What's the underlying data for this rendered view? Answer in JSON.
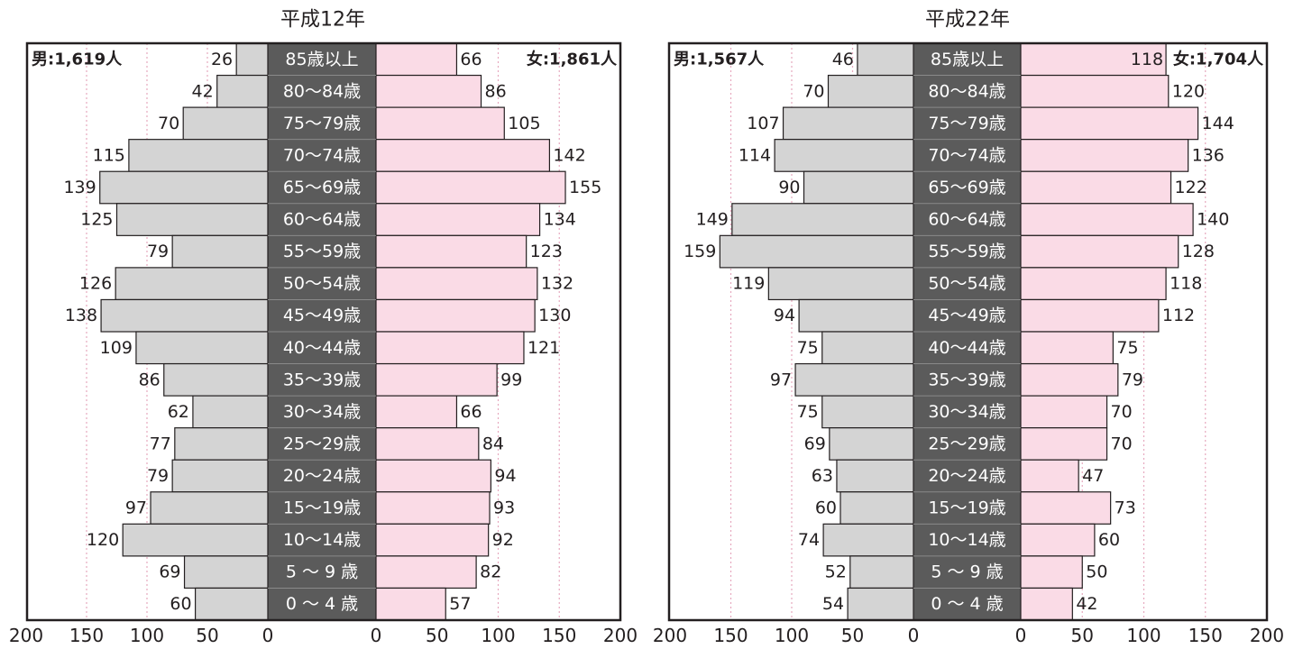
{
  "chart_data": [
    {
      "type": "bar",
      "title": "平成12年",
      "male_total": "男:1,619人",
      "female_total": "女:1,861人",
      "categories": [
        "85歳以上",
        "80〜84歳",
        "75〜79歳",
        "70〜74歳",
        "65〜69歳",
        "60〜64歳",
        "55〜59歳",
        "50〜54歳",
        "45〜49歳",
        "40〜44歳",
        "35〜39歳",
        "30〜34歳",
        "25〜29歳",
        "20〜24歳",
        "15〜19歳",
        "10〜14歳",
        "5 〜 9 歳",
        "0 〜 4 歳"
      ],
      "series": [
        {
          "values": [
            26,
            42,
            70,
            115,
            139,
            125,
            79,
            126,
            138,
            109,
            86,
            62,
            77,
            79,
            97,
            120,
            69,
            60
          ]
        },
        {
          "values": [
            66,
            86,
            105,
            142,
            155,
            134,
            123,
            132,
            130,
            121,
            99,
            66,
            84,
            94,
            93,
            92,
            82,
            57
          ]
        }
      ],
      "xlim": [
        0,
        200
      ],
      "ticks_male": [
        "200",
        "150",
        "100",
        "50",
        "0"
      ],
      "ticks_female": [
        "0",
        "50",
        "100",
        "150",
        "200"
      ],
      "grid": true,
      "colors": {
        "male": "#d4d4d4",
        "female": "#fadbe6",
        "label_band": "#5b5b5b",
        "grid": "#e7a9bf"
      }
    },
    {
      "type": "bar",
      "title": "平成22年",
      "male_total": "男:1,567人",
      "female_total": "女:1,704人",
      "categories": [
        "85歳以上",
        "80〜84歳",
        "75〜79歳",
        "70〜74歳",
        "65〜69歳",
        "60〜64歳",
        "55〜59歳",
        "50〜54歳",
        "45〜49歳",
        "40〜44歳",
        "35〜39歳",
        "30〜34歳",
        "25〜29歳",
        "20〜24歳",
        "15〜19歳",
        "10〜14歳",
        "5 〜 9 歳",
        "0 〜 4 歳"
      ],
      "series": [
        {
          "values": [
            46,
            70,
            107,
            114,
            90,
            149,
            159,
            119,
            94,
            75,
            97,
            75,
            69,
            63,
            60,
            74,
            52,
            54
          ]
        },
        {
          "values": [
            118,
            120,
            144,
            136,
            122,
            140,
            128,
            118,
            112,
            75,
            79,
            70,
            70,
            47,
            73,
            60,
            50,
            42
          ]
        }
      ],
      "xlim": [
        0,
        200
      ],
      "ticks_male": [
        "200",
        "150",
        "100",
        "50",
        "0"
      ],
      "ticks_female": [
        "0",
        "50",
        "100",
        "150",
        "200"
      ],
      "grid": true,
      "colors": {
        "male": "#d4d4d4",
        "female": "#fadbe6",
        "label_band": "#5b5b5b",
        "grid": "#e7a9bf"
      }
    }
  ]
}
